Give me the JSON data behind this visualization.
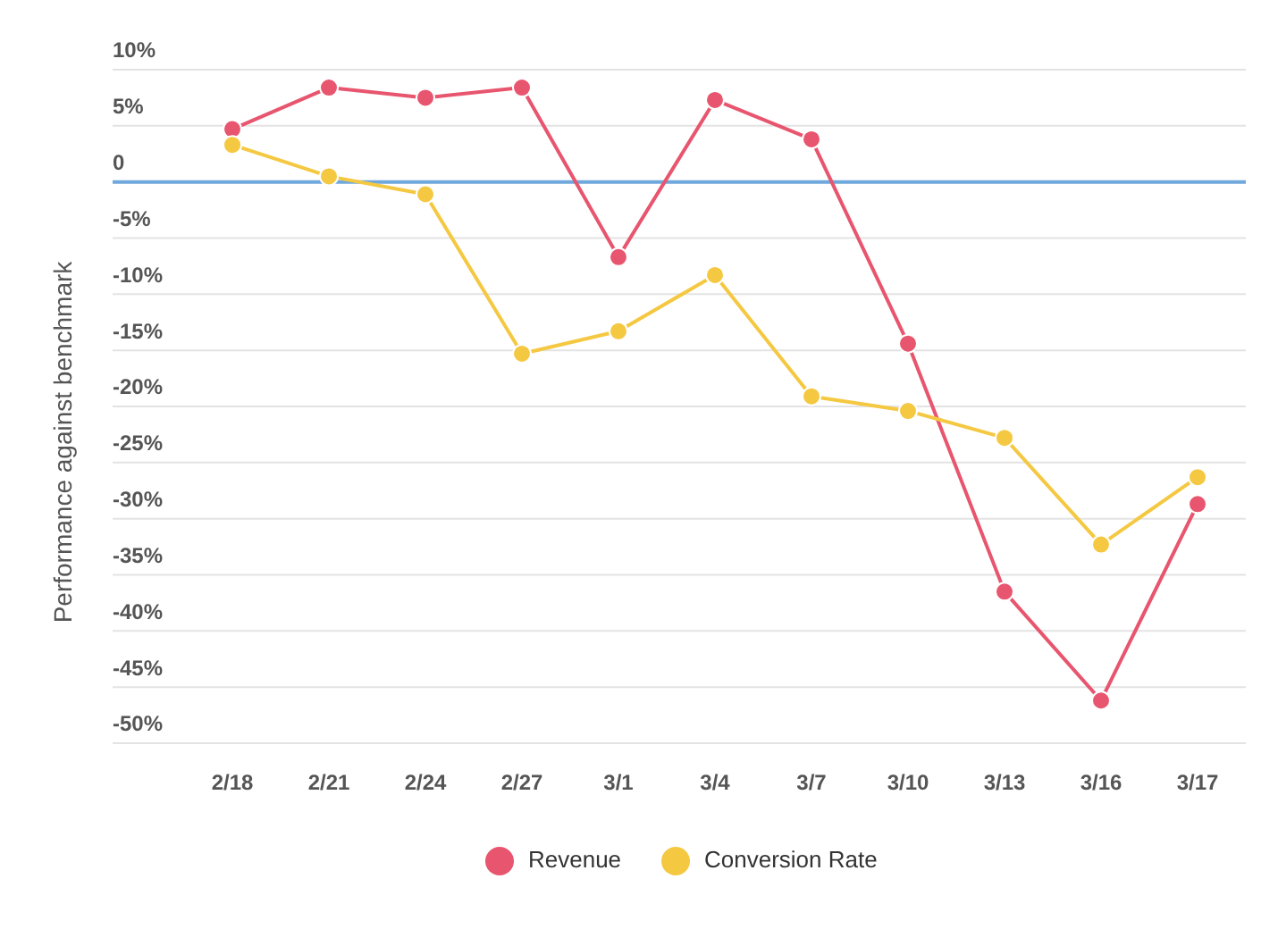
{
  "chart_data": {
    "type": "line",
    "ylabel": "Performance against benchmark",
    "categories": [
      "2/18",
      "2/21",
      "2/24",
      "2/27",
      "3/1",
      "3/4",
      "3/7",
      "3/10",
      "3/13",
      "3/16",
      "3/17"
    ],
    "series": [
      {
        "name": "Revenue",
        "color": "#e8556e",
        "values": [
          4.7,
          8.4,
          7.5,
          8.4,
          -6.7,
          7.3,
          3.8,
          -14.4,
          -36.5,
          -46.2,
          -28.7
        ]
      },
      {
        "name": "Conversion Rate",
        "color": "#f5c842",
        "values": [
          3.3,
          0.5,
          -1.1,
          -15.3,
          -13.3,
          -8.3,
          -19.1,
          -20.4,
          -22.8,
          -32.3,
          -26.3
        ]
      }
    ],
    "ylim": [
      -50,
      10
    ],
    "yticks": [
      {
        "value": 10,
        "label": "10%"
      },
      {
        "value": 5,
        "label": "5%"
      },
      0,
      {
        "value": -5,
        "label": "-5%"
      },
      {
        "value": -10,
        "label": "-10%"
      },
      {
        "value": -15,
        "label": "-15%"
      },
      {
        "value": -20,
        "label": "-20%"
      },
      {
        "value": -25,
        "label": "-25%"
      },
      {
        "value": -30,
        "label": "-30%"
      },
      {
        "value": -35,
        "label": "-35%"
      },
      {
        "value": -40,
        "label": "-40%"
      },
      {
        "value": -45,
        "label": "-45%"
      },
      {
        "value": -50,
        "label": "-50%"
      }
    ],
    "ref_lines": [
      {
        "axis": "y",
        "value": 0,
        "color": "#6fa8dc"
      }
    ],
    "grid": "y",
    "legend": "bottom",
    "marker": "circle",
    "line_style": "solid"
  }
}
